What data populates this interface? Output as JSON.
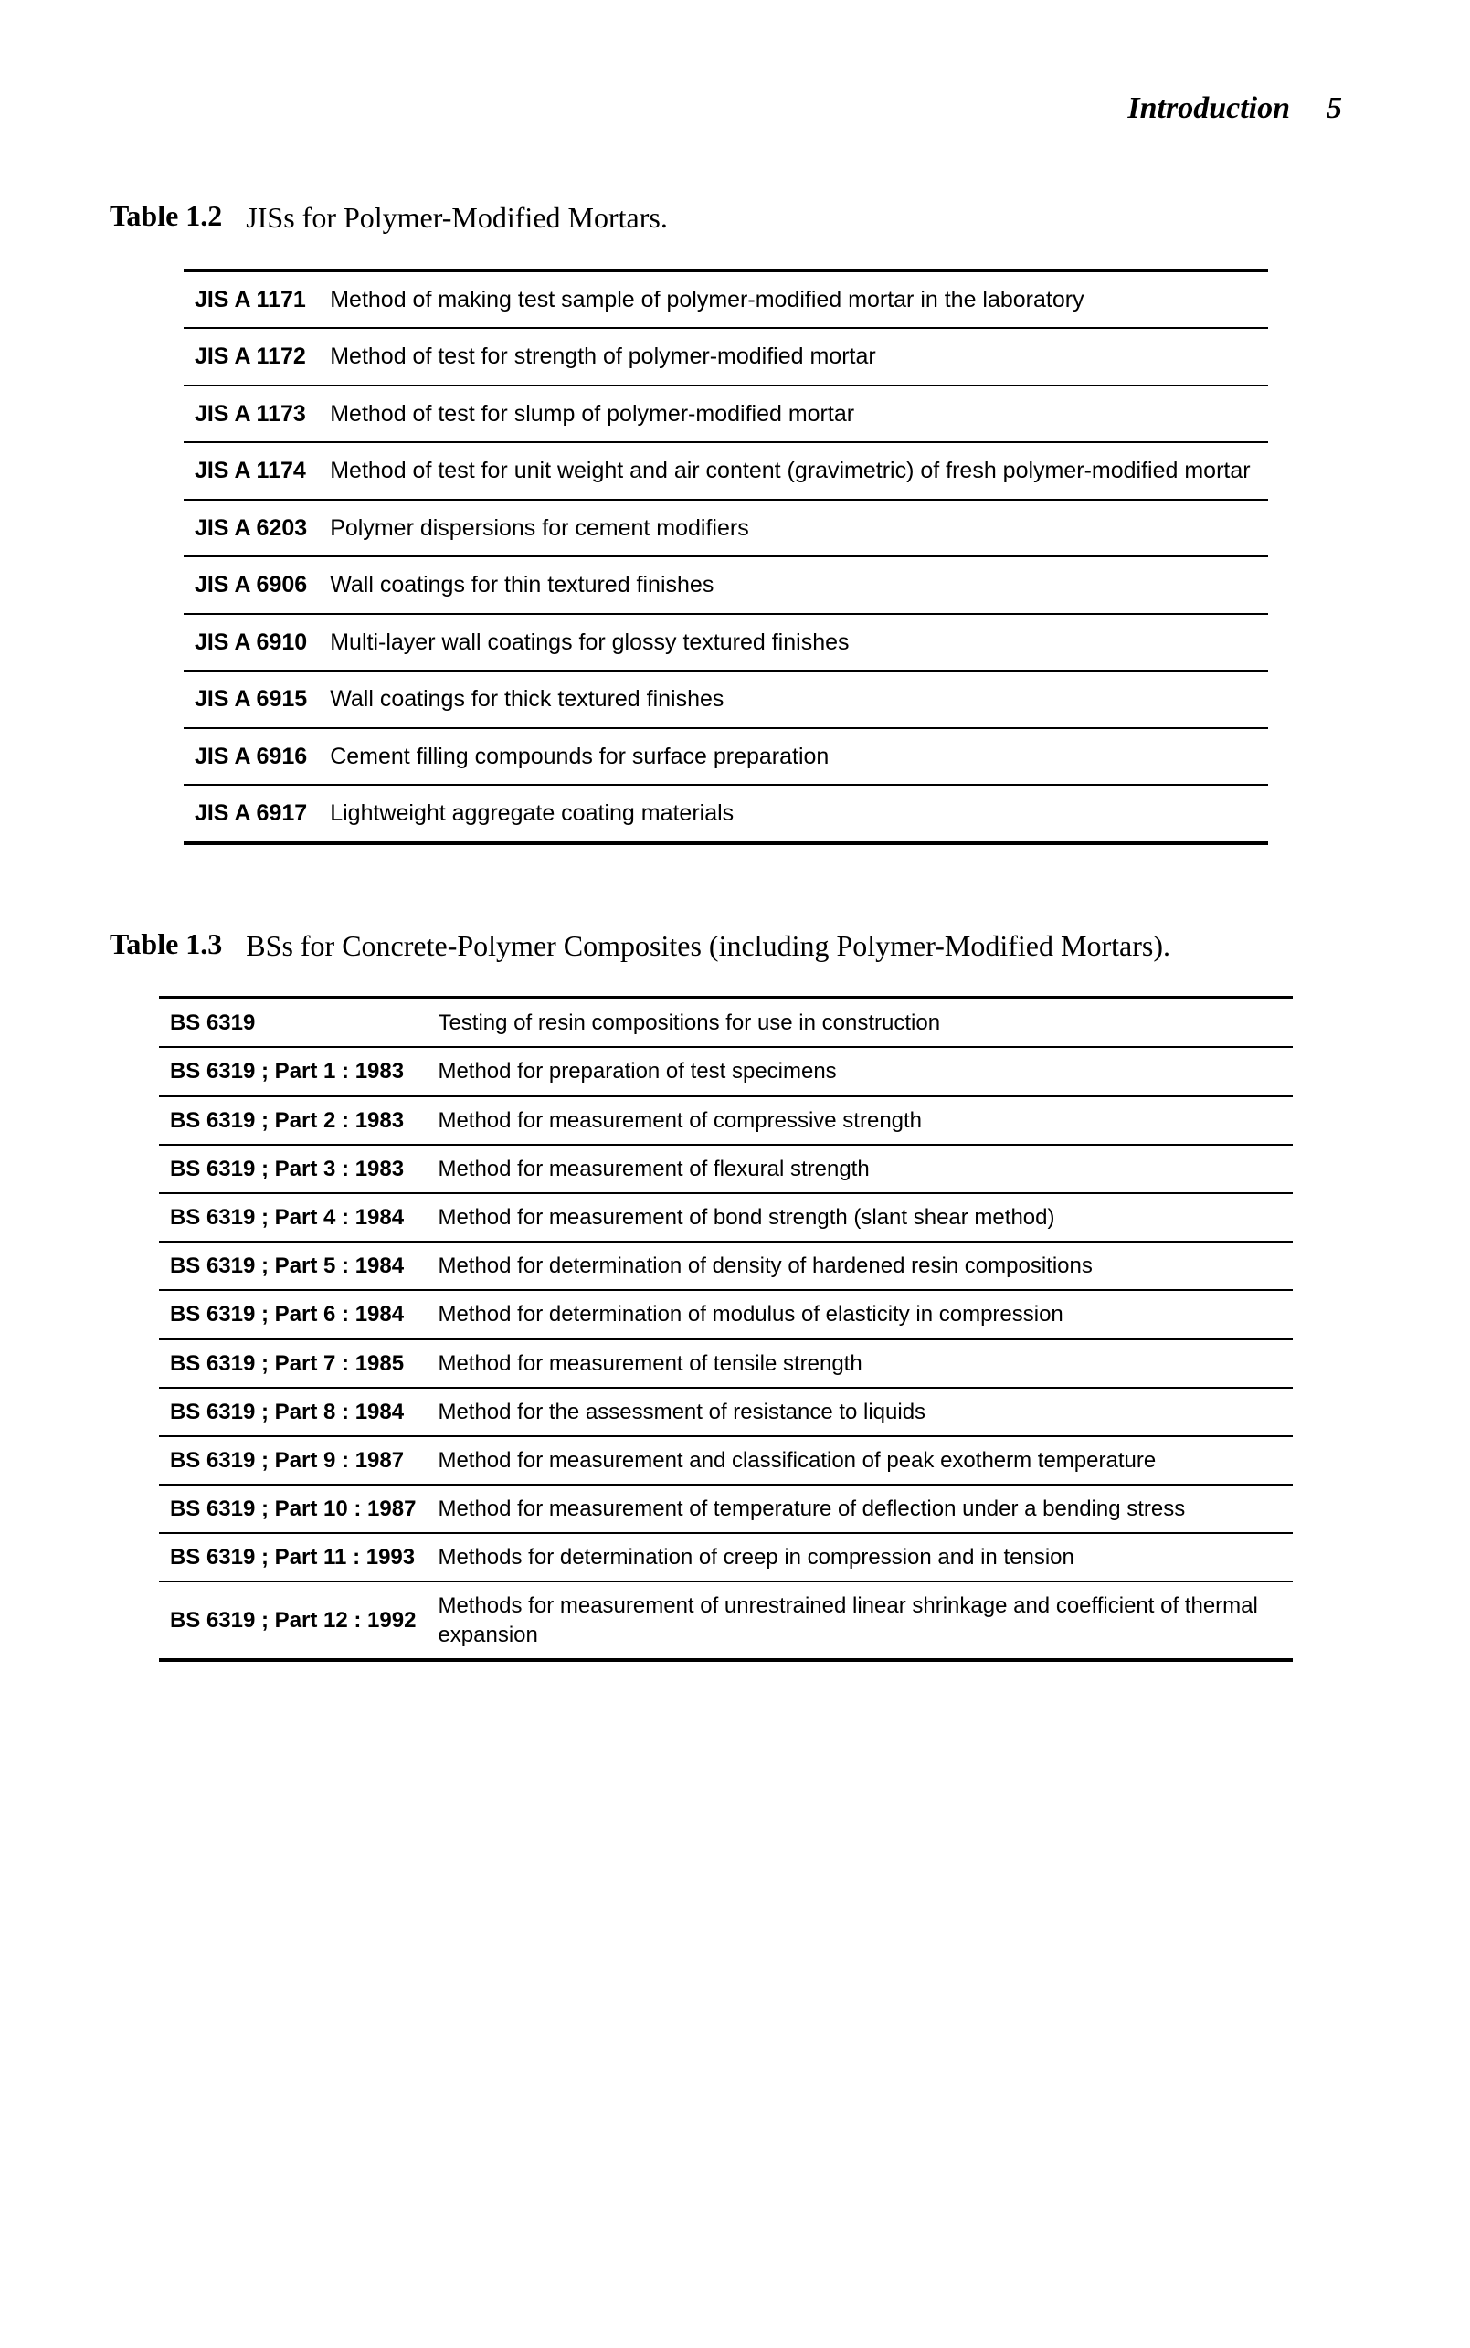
{
  "header": {
    "runningHead": "Introduction",
    "pageNumber": "5"
  },
  "table12": {
    "label": "Table 1.2",
    "caption": "JISs for Polymer-Modified Mortars.",
    "rows": [
      {
        "code": "JIS A 1171",
        "desc": "Method of making test sample of polymer-modified mortar in the laboratory"
      },
      {
        "code": "JIS A 1172",
        "desc": "Method of test for strength of polymer-modified mortar"
      },
      {
        "code": "JIS A 1173",
        "desc": "Method of test for slump of polymer-modified mortar"
      },
      {
        "code": "JIS A 1174",
        "desc": "Method of test for unit weight and air content (gravimetric) of fresh polymer-modified mortar"
      },
      {
        "code": "JIS A 6203",
        "desc": "Polymer dispersions for cement modifiers"
      },
      {
        "code": "JIS A 6906",
        "desc": "Wall coatings for thin textured finishes"
      },
      {
        "code": "JIS A 6910",
        "desc": "Multi-layer wall coatings for glossy textured finishes"
      },
      {
        "code": "JIS A 6915",
        "desc": "Wall coatings for thick textured finishes"
      },
      {
        "code": "JIS A 6916",
        "desc": "Cement filling compounds for surface preparation"
      },
      {
        "code": "JIS A 6917",
        "desc": "Lightweight aggregate coating materials"
      }
    ]
  },
  "table13": {
    "label": "Table 1.3",
    "caption": "BSs for Concrete-Polymer Composites (including Polymer-Modified Mortars).",
    "rows": [
      {
        "code": "BS 6319",
        "desc": "Testing of resin compositions for use in construction"
      },
      {
        "code": "BS 6319 ; Part 1 : 1983",
        "desc": "Method for preparation of test specimens"
      },
      {
        "code": "BS 6319 ; Part 2 : 1983",
        "desc": "Method for measurement of compressive strength"
      },
      {
        "code": "BS 6319 ; Part 3 : 1983",
        "desc": "Method for measurement of flexural strength"
      },
      {
        "code": "BS 6319 ; Part 4 : 1984",
        "desc": "Method for measurement of bond strength (slant shear method)"
      },
      {
        "code": "BS 6319 ; Part 5 : 1984",
        "desc": "Method for determination of density of hardened resin compositions"
      },
      {
        "code": "BS 6319 ; Part 6 : 1984",
        "desc": "Method for determination of modulus of elasticity in compression"
      },
      {
        "code": "BS 6319 ; Part 7 : 1985",
        "desc": "Method for measurement of tensile strength"
      },
      {
        "code": "BS 6319 ; Part 8 : 1984",
        "desc": "Method for the assessment of resistance to liquids"
      },
      {
        "code": "BS 6319 ; Part 9 : 1987",
        "desc": "Method for measurement and classification of peak exotherm temperature"
      },
      {
        "code": "BS 6319 ; Part 10 : 1987",
        "desc": "Method for measurement of temperature of deflection under a bending stress"
      },
      {
        "code": "BS 6319 ; Part 11 : 1993",
        "desc": "Methods for determination of creep in compression and in tension"
      },
      {
        "code": "BS 6319 ; Part 12 : 1992",
        "desc": "Methods for measurement of unrestrained linear shrinkage and coefficient of thermal expansion"
      }
    ]
  }
}
